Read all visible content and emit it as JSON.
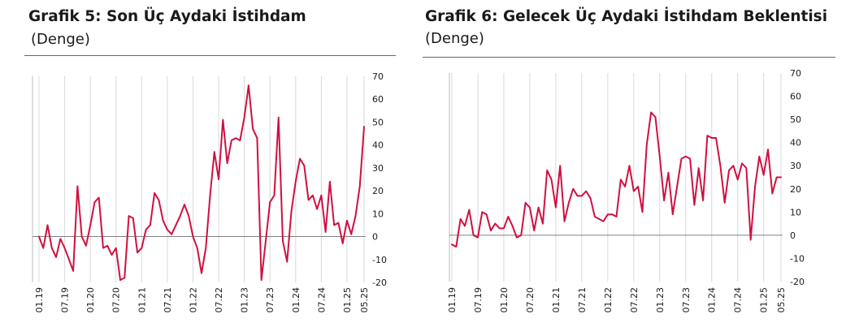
{
  "charts": [
    {
      "title": "Grafik 5: Son Üç Aydaki İstihdam",
      "subtitle": "(Denge)"
    },
    {
      "title": "Grafik 6: Gelecek Üç Aydaki İstihdam Beklentisi",
      "subtitle": "(Denge)"
    }
  ],
  "colors": {
    "line": "#d01040",
    "grid": "#d9d9d9",
    "zero": "#808080",
    "axis": "#333333"
  },
  "chart_data": [
    {
      "type": "line",
      "title": "Grafik 5: Son Üç Aydaki İstihdam",
      "subtitle": "(Denge)",
      "x_tick_labels": [
        "01.19",
        "07.19",
        "01.20",
        "07.20",
        "01.21",
        "07.21",
        "01.22",
        "07.22",
        "01.23",
        "07.23",
        "01.24",
        "07.24",
        "01.25",
        "05.25"
      ],
      "x_tick_index": [
        0,
        6,
        12,
        18,
        24,
        30,
        36,
        42,
        48,
        54,
        60,
        66,
        72,
        76
      ],
      "ylim": [
        -20,
        70
      ],
      "y_ticks": [
        -20,
        -10,
        0,
        10,
        20,
        30,
        40,
        50,
        60,
        70
      ],
      "y_axis_side": "right",
      "grid": "vertical",
      "series": [
        {
          "values": [
            0,
            -5,
            5,
            -5,
            -9,
            -1,
            -5,
            -10,
            -15,
            22,
            0,
            -4,
            5,
            15,
            17,
            -5,
            -4,
            -8,
            -5,
            -19,
            -18,
            9,
            8,
            -7,
            -5,
            3,
            5,
            19,
            16,
            7,
            3,
            1,
            5,
            9,
            14,
            9,
            0,
            -5,
            -16,
            -5,
            18,
            37,
            25,
            51,
            32,
            42,
            43,
            42,
            52,
            66,
            47,
            43,
            -19,
            -2,
            15,
            18,
            52,
            -2,
            -11,
            11,
            24,
            34,
            31,
            16,
            18,
            12,
            18,
            2,
            24,
            5,
            6,
            -3,
            7,
            1,
            9,
            22,
            48
          ]
        }
      ]
    },
    {
      "type": "line",
      "title": "Grafik 6: Gelecek Üç Aydaki İstihdam Beklentisi",
      "subtitle": "(Denge)",
      "x_tick_labels": [
        "01.19",
        "07.19",
        "01.20",
        "07.20",
        "01.21",
        "07.21",
        "01.22",
        "07.22",
        "01.23",
        "07.23",
        "01.24",
        "07.24",
        "01.25",
        "05.25"
      ],
      "x_tick_index": [
        0,
        6,
        12,
        18,
        24,
        30,
        36,
        42,
        48,
        54,
        60,
        66,
        72,
        76
      ],
      "ylim": [
        -20,
        70
      ],
      "y_ticks": [
        -20,
        -10,
        0,
        10,
        20,
        30,
        40,
        50,
        60,
        70
      ],
      "y_axis_side": "right",
      "grid": "vertical",
      "series": [
        {
          "values": [
            -4,
            -5,
            7,
            4,
            11,
            0,
            -1,
            10,
            9,
            2,
            5,
            3,
            3,
            8,
            4,
            -1,
            0,
            14,
            12,
            2,
            12,
            5,
            28,
            24,
            12,
            30,
            6,
            14,
            20,
            17,
            17,
            19,
            16,
            8,
            7,
            6,
            9,
            9,
            8,
            24,
            21,
            30,
            19,
            21,
            10,
            39,
            53,
            51,
            34,
            15,
            27,
            9,
            21,
            33,
            34,
            33,
            13,
            29,
            15,
            43,
            42,
            42,
            30,
            14,
            28,
            30,
            24,
            31,
            29,
            -2,
            21,
            34,
            26,
            37,
            18,
            25,
            25
          ]
        }
      ]
    }
  ]
}
